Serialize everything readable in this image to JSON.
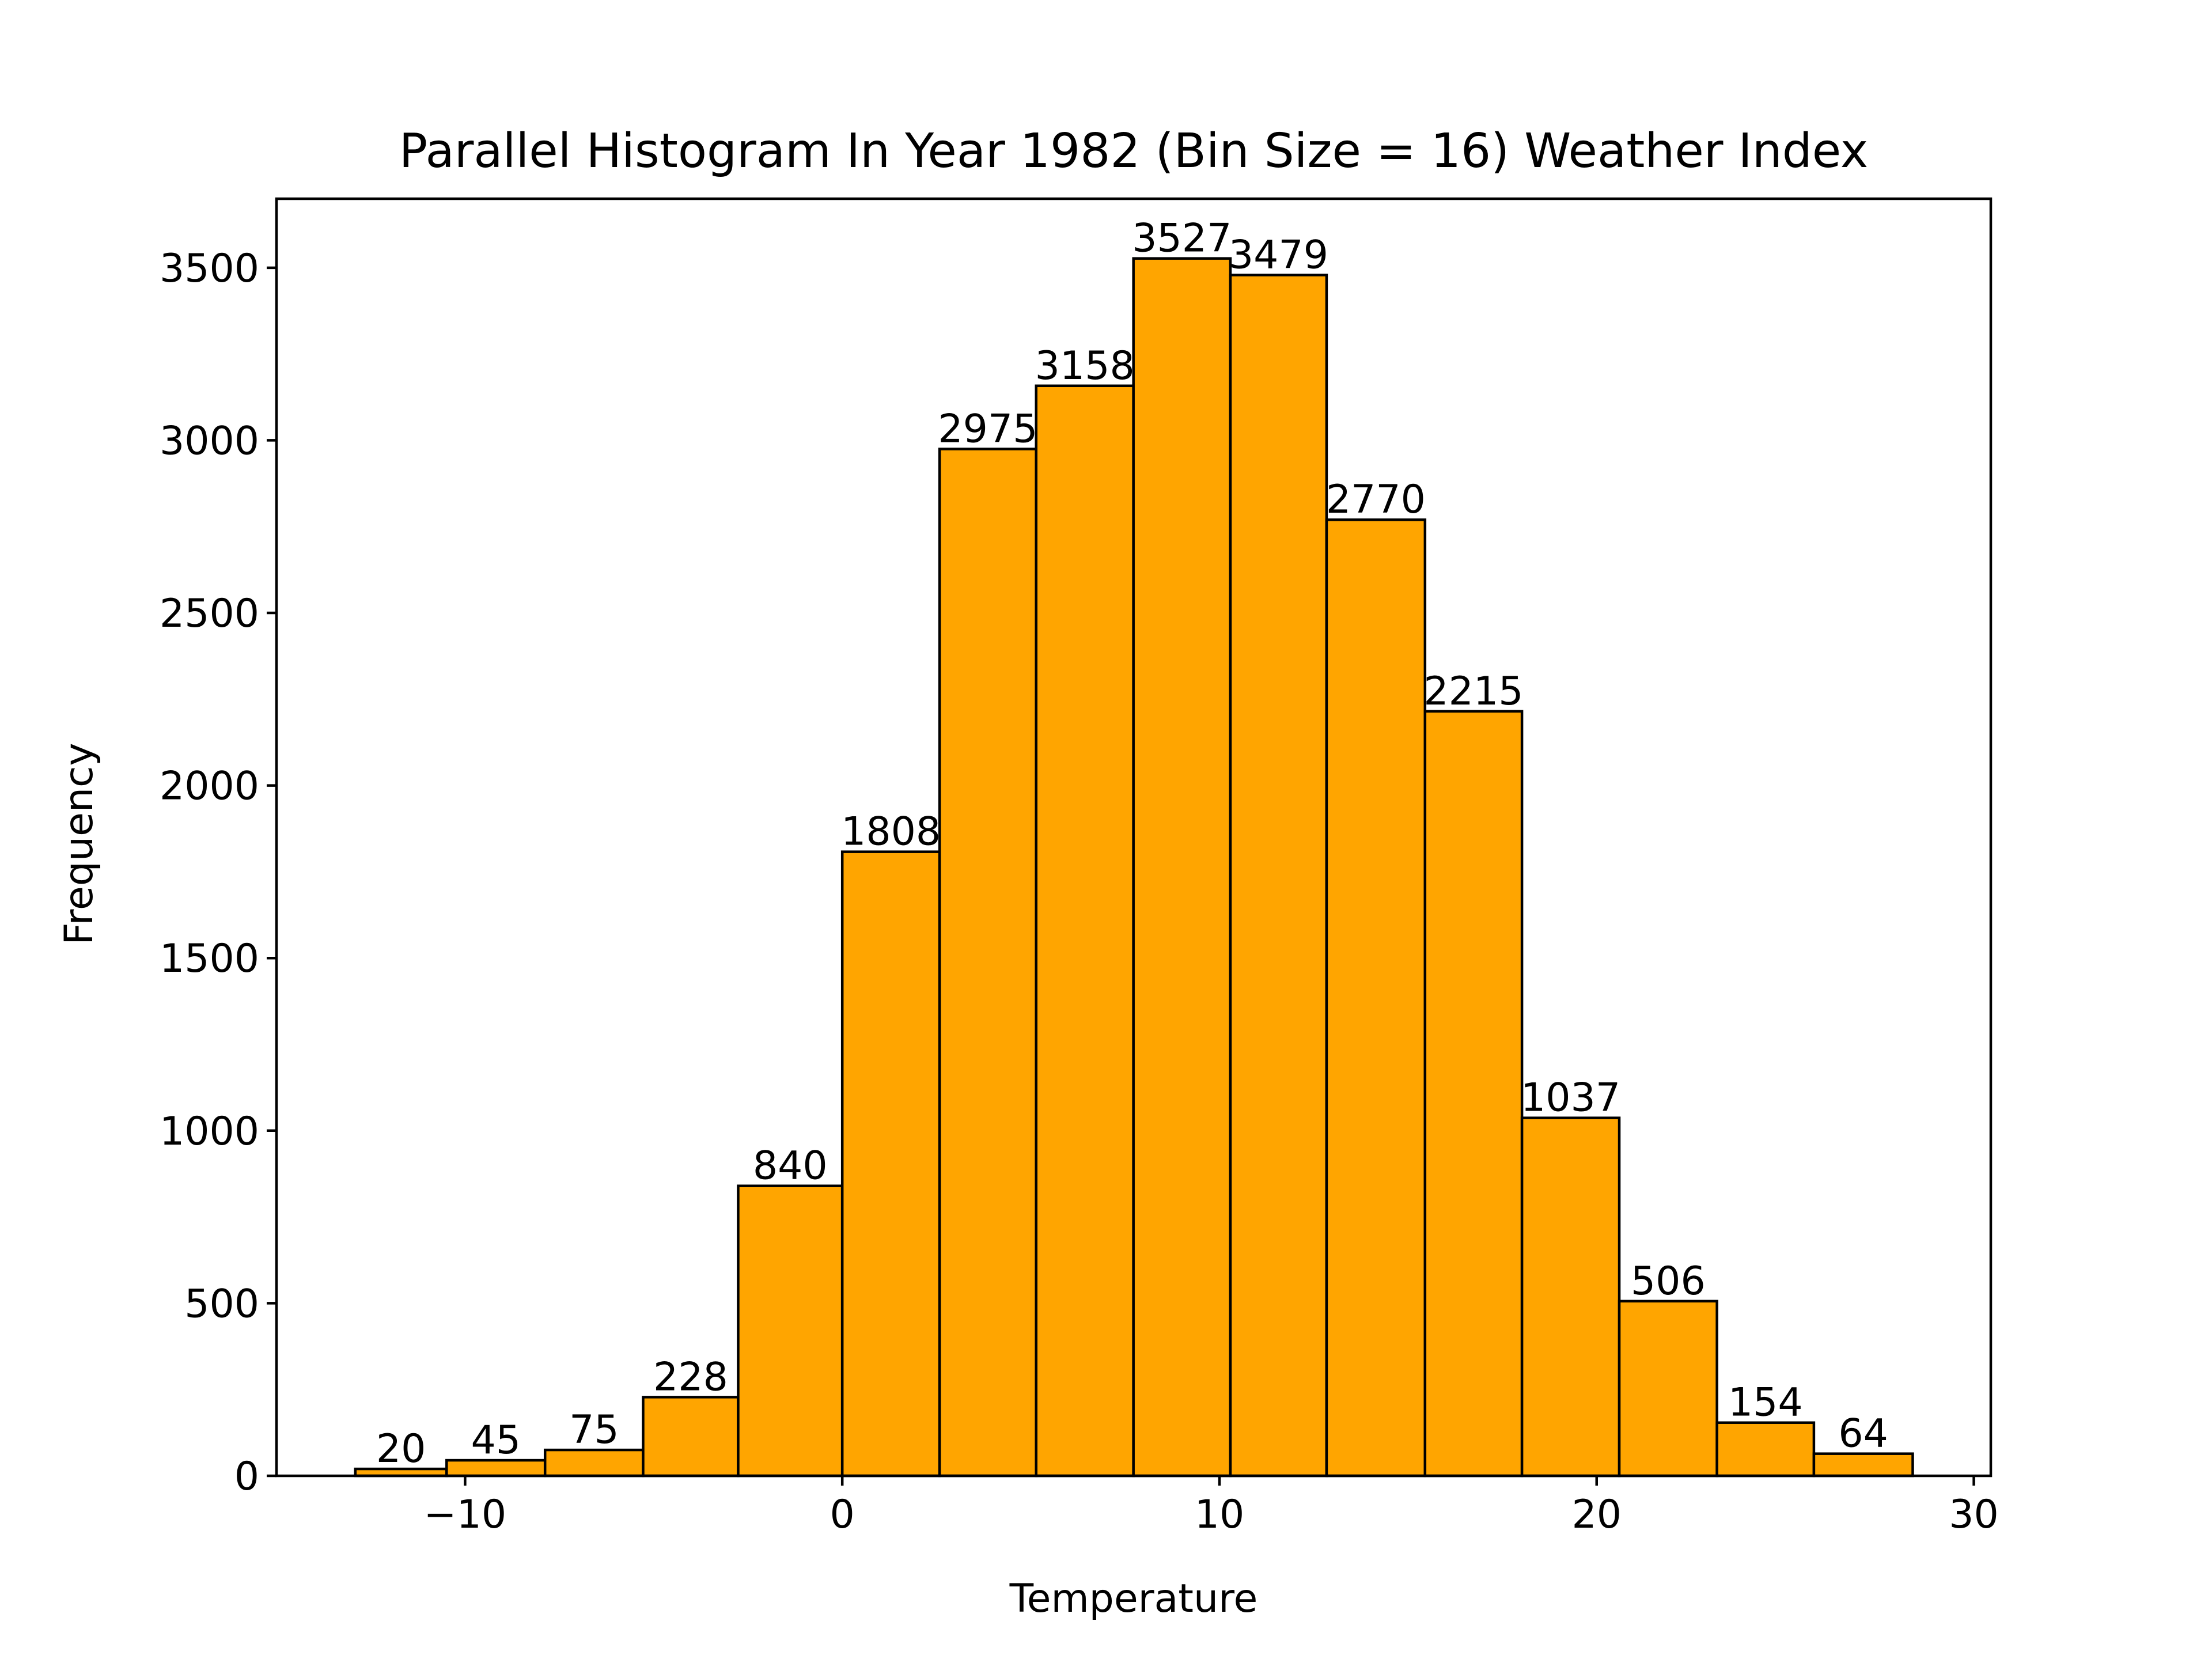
{
  "chart_data": {
    "type": "bar",
    "title": "Parallel Histogram In Year 1982 (Bin Size = 16) Weather Index",
    "xlabel": "Temperature",
    "ylabel": "Frequency",
    "bin_edges": [
      -12.91,
      -10.49,
      -7.88,
      -5.28,
      -2.76,
      0.0,
      2.58,
      5.14,
      7.72,
      10.29,
      12.84,
      15.45,
      18.02,
      20.6,
      23.19,
      25.76,
      28.38
    ],
    "values": [
      20,
      45,
      75,
      228,
      840,
      1808,
      2975,
      3158,
      3527,
      3479,
      2770,
      2215,
      1037,
      506,
      154,
      64
    ],
    "value_labels": [
      "20",
      "45",
      "75",
      "228",
      "840",
      "1808",
      "2975",
      "3158",
      "3527",
      "3479",
      "2770",
      "2215",
      "1037",
      "506",
      "154",
      "64"
    ],
    "xlim": [
      -15.0,
      30.45
    ],
    "ylim": [
      0,
      3700
    ],
    "xticks": [
      -10,
      0,
      10,
      20,
      30
    ],
    "xtick_labels": [
      "−10",
      "0",
      "10",
      "20",
      "30"
    ],
    "yticks": [
      0,
      500,
      1000,
      1500,
      2000,
      2500,
      3000,
      3500
    ],
    "ytick_labels": [
      "0",
      "500",
      "1000",
      "1500",
      "2000",
      "2500",
      "3000",
      "3500"
    ],
    "grid": false,
    "colors": {
      "bar_fill": "#FFA500",
      "bar_edge": "#000000",
      "frame": "#000000",
      "text": "#000000"
    }
  }
}
